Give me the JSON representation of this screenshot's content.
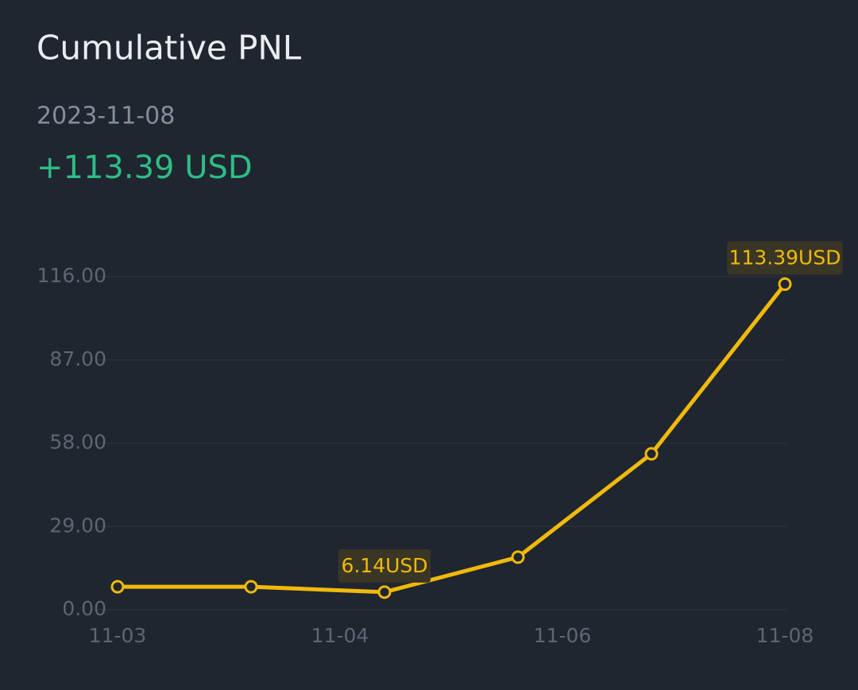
{
  "header": {
    "title": "Cumulative PNL",
    "date": "2023-11-08",
    "total": "+113.39 USD"
  },
  "chart_data": {
    "type": "line",
    "categories": [
      "11-03",
      null,
      null,
      null,
      null,
      "11-08"
    ],
    "x_labels": [
      "11-03",
      "11-04",
      "11-06",
      "11-08"
    ],
    "values": [
      8,
      8,
      6.14,
      18.3,
      54.3,
      113.39
    ],
    "value_labels": [
      null,
      null,
      "6.14USD",
      null,
      null,
      "113.39USD"
    ],
    "color": "#f0b90b",
    "ylim": [
      0,
      116
    ],
    "yticks": [
      {
        "value": 0,
        "label": "0.00"
      },
      {
        "value": 29,
        "label": "29.00"
      },
      {
        "value": 58,
        "label": "58.00"
      },
      {
        "value": 87,
        "label": "87.00"
      },
      {
        "value": 116,
        "label": "116.00"
      }
    ],
    "grid": true
  }
}
